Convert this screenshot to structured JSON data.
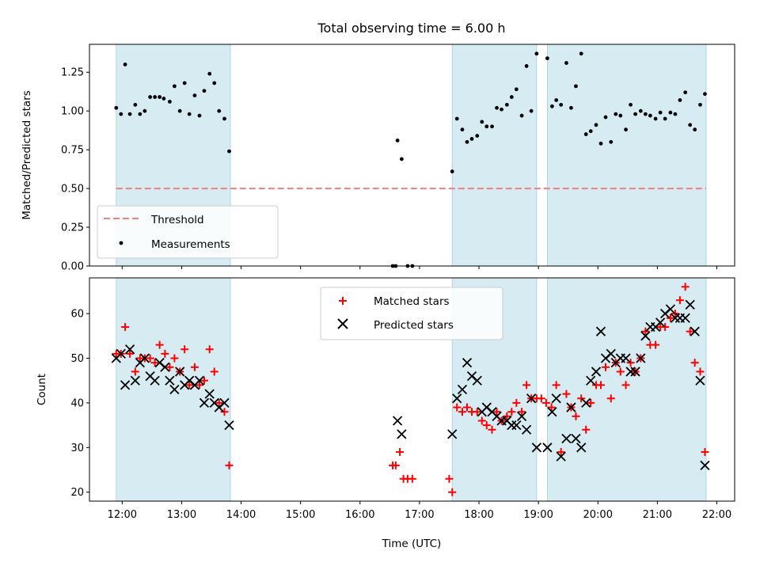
{
  "chart_data": [
    {
      "type": "scatter",
      "title": "Total observing time = 6.00 h",
      "ylabel": "Matched/Predicted stars",
      "xlabel": "",
      "x_unit": "hours UTC",
      "xlim": [
        11.45,
        22.3
      ],
      "ylim": [
        0,
        1.43
      ],
      "yticks": [
        0.0,
        0.25,
        0.5,
        0.75,
        1.0,
        1.25
      ],
      "ytick_labels": [
        "0.00",
        "0.25",
        "0.50",
        "0.75",
        "1.00",
        "1.25"
      ],
      "xticks": [
        12,
        13,
        14,
        15,
        16,
        17,
        18,
        19,
        20,
        21,
        22
      ],
      "xtick_labels": [
        "",
        "",
        "",
        "",
        "",
        "",
        "",
        "",
        "",
        "",
        ""
      ],
      "shaded_intervals": [
        [
          11.9,
          13.82
        ],
        [
          17.55,
          18.97
        ],
        [
          19.15,
          21.82
        ]
      ],
      "threshold": {
        "name": "Threshold",
        "value": 0.5,
        "x_range": [
          11.9,
          21.82
        ],
        "color": "#f08080"
      },
      "legend": {
        "placement": "lower-left",
        "entries": [
          "Threshold",
          "Measurements"
        ]
      },
      "series": [
        {
          "name": "Measurements",
          "color": "#000000",
          "points": [
            [
              11.9,
              1.02
            ],
            [
              11.98,
              0.98
            ],
            [
              12.05,
              1.3
            ],
            [
              12.13,
              0.98
            ],
            [
              12.22,
              1.04
            ],
            [
              12.3,
              0.98
            ],
            [
              12.38,
              1.0
            ],
            [
              12.47,
              1.09
            ],
            [
              12.55,
              1.09
            ],
            [
              12.63,
              1.09
            ],
            [
              12.7,
              1.08
            ],
            [
              12.8,
              1.06
            ],
            [
              12.88,
              1.16
            ],
            [
              12.97,
              1.0
            ],
            [
              13.05,
              1.18
            ],
            [
              13.13,
              0.98
            ],
            [
              13.22,
              1.1
            ],
            [
              13.3,
              0.97
            ],
            [
              13.38,
              1.13
            ],
            [
              13.47,
              1.24
            ],
            [
              13.55,
              1.18
            ],
            [
              13.63,
              1.0
            ],
            [
              13.72,
              0.95
            ],
            [
              13.8,
              0.74
            ],
            [
              16.55,
              0.0
            ],
            [
              16.6,
              0.0
            ],
            [
              16.63,
              0.81
            ],
            [
              16.7,
              0.69
            ],
            [
              16.8,
              0.0
            ],
            [
              16.88,
              0.0
            ],
            [
              17.55,
              0.61
            ],
            [
              17.63,
              0.95
            ],
            [
              17.72,
              0.88
            ],
            [
              17.8,
              0.8
            ],
            [
              17.88,
              0.82
            ],
            [
              17.97,
              0.84
            ],
            [
              18.05,
              0.93
            ],
            [
              18.13,
              0.9
            ],
            [
              18.22,
              0.9
            ],
            [
              18.3,
              1.02
            ],
            [
              18.38,
              1.01
            ],
            [
              18.47,
              1.04
            ],
            [
              18.55,
              1.09
            ],
            [
              18.63,
              1.14
            ],
            [
              18.72,
              0.97
            ],
            [
              18.8,
              1.29
            ],
            [
              18.88,
              1.0
            ],
            [
              18.97,
              1.37
            ],
            [
              19.15,
              1.34
            ],
            [
              19.23,
              1.03
            ],
            [
              19.3,
              1.07
            ],
            [
              19.38,
              1.04
            ],
            [
              19.47,
              1.31
            ],
            [
              19.55,
              1.02
            ],
            [
              19.63,
              1.16
            ],
            [
              19.72,
              1.37
            ],
            [
              19.8,
              0.85
            ],
            [
              19.88,
              0.87
            ],
            [
              19.97,
              0.91
            ],
            [
              20.05,
              0.79
            ],
            [
              20.13,
              0.96
            ],
            [
              20.22,
              0.8
            ],
            [
              20.3,
              0.98
            ],
            [
              20.38,
              0.97
            ],
            [
              20.47,
              0.88
            ],
            [
              20.55,
              1.04
            ],
            [
              20.63,
              0.98
            ],
            [
              20.72,
              1.0
            ],
            [
              20.8,
              0.98
            ],
            [
              20.88,
              0.97
            ],
            [
              20.97,
              0.95
            ],
            [
              21.05,
              0.99
            ],
            [
              21.13,
              0.95
            ],
            [
              21.22,
              0.99
            ],
            [
              21.3,
              0.98
            ],
            [
              21.38,
              1.07
            ],
            [
              21.47,
              1.12
            ],
            [
              21.55,
              0.91
            ],
            [
              21.63,
              0.88
            ],
            [
              21.72,
              1.04
            ],
            [
              21.8,
              1.11
            ]
          ]
        }
      ]
    },
    {
      "type": "scatter",
      "title": "",
      "ylabel": "Count",
      "xlabel": "Time (UTC)",
      "x_unit": "hours UTC",
      "xlim": [
        11.45,
        22.3
      ],
      "ylim": [
        18,
        68
      ],
      "yticks": [
        20,
        30,
        40,
        50,
        60
      ],
      "ytick_labels": [
        "20",
        "30",
        "40",
        "50",
        "60"
      ],
      "xticks": [
        12,
        13,
        14,
        15,
        16,
        17,
        18,
        19,
        20,
        21,
        22
      ],
      "xtick_labels": [
        "12:00",
        "13:00",
        "14:00",
        "15:00",
        "16:00",
        "17:00",
        "18:00",
        "19:00",
        "20:00",
        "21:00",
        "22:00"
      ],
      "shaded_intervals": [
        [
          11.9,
          13.82
        ],
        [
          17.55,
          18.97
        ],
        [
          19.15,
          21.82
        ]
      ],
      "legend": {
        "placement": "upper-center",
        "entries": [
          "Matched stars",
          "Predicted stars"
        ]
      },
      "series": [
        {
          "name": "Matched stars",
          "marker": "plus",
          "color": "#ff0000",
          "points": [
            [
              11.9,
              51
            ],
            [
              11.98,
              51
            ],
            [
              12.05,
              57
            ],
            [
              12.13,
              51
            ],
            [
              12.22,
              47
            ],
            [
              12.3,
              50
            ],
            [
              12.38,
              50
            ],
            [
              12.47,
              50
            ],
            [
              12.55,
              49
            ],
            [
              12.63,
              53
            ],
            [
              12.72,
              51
            ],
            [
              12.8,
              48
            ],
            [
              12.88,
              50
            ],
            [
              12.97,
              47
            ],
            [
              13.05,
              52
            ],
            [
              13.13,
              44
            ],
            [
              13.22,
              48
            ],
            [
              13.3,
              44
            ],
            [
              13.38,
              45
            ],
            [
              13.47,
              52
            ],
            [
              13.55,
              47
            ],
            [
              13.63,
              40
            ],
            [
              13.72,
              38
            ],
            [
              13.8,
              26
            ],
            [
              16.55,
              26
            ],
            [
              16.6,
              26
            ],
            [
              16.67,
              29
            ],
            [
              16.73,
              23
            ],
            [
              16.8,
              23
            ],
            [
              16.88,
              23
            ],
            [
              17.5,
              23
            ],
            [
              17.55,
              20
            ],
            [
              17.63,
              39
            ],
            [
              17.72,
              38
            ],
            [
              17.8,
              39
            ],
            [
              17.88,
              38
            ],
            [
              17.97,
              38
            ],
            [
              18.05,
              36
            ],
            [
              18.13,
              35
            ],
            [
              18.22,
              34
            ],
            [
              18.3,
              38
            ],
            [
              18.38,
              36
            ],
            [
              18.47,
              37
            ],
            [
              18.55,
              38
            ],
            [
              18.63,
              40
            ],
            [
              18.72,
              38
            ],
            [
              18.8,
              44
            ],
            [
              18.88,
              41
            ],
            [
              18.97,
              41
            ],
            [
              19.05,
              41
            ],
            [
              19.13,
              40
            ],
            [
              19.22,
              39
            ],
            [
              19.3,
              44
            ],
            [
              19.38,
              29
            ],
            [
              19.47,
              42
            ],
            [
              19.55,
              39
            ],
            [
              19.63,
              37
            ],
            [
              19.72,
              41
            ],
            [
              19.8,
              34
            ],
            [
              19.88,
              40
            ],
            [
              19.97,
              44
            ],
            [
              20.05,
              44
            ],
            [
              20.13,
              48
            ],
            [
              20.22,
              41
            ],
            [
              20.3,
              49
            ],
            [
              20.38,
              47
            ],
            [
              20.47,
              44
            ],
            [
              20.55,
              49
            ],
            [
              20.63,
              47
            ],
            [
              20.72,
              50
            ],
            [
              20.8,
              56
            ],
            [
              20.88,
              53
            ],
            [
              20.97,
              53
            ],
            [
              21.05,
              57
            ],
            [
              21.13,
              57
            ],
            [
              21.22,
              59
            ],
            [
              21.3,
              60
            ],
            [
              21.38,
              63
            ],
            [
              21.47,
              66
            ],
            [
              21.55,
              56
            ],
            [
              21.63,
              49
            ],
            [
              21.72,
              47
            ],
            [
              21.8,
              29
            ]
          ]
        },
        {
          "name": "Predicted stars",
          "marker": "x",
          "color": "#000000",
          "points": [
            [
              11.9,
              50
            ],
            [
              11.98,
              51
            ],
            [
              12.05,
              44
            ],
            [
              12.13,
              52
            ],
            [
              12.22,
              45
            ],
            [
              12.3,
              49
            ],
            [
              12.38,
              50
            ],
            [
              12.47,
              46
            ],
            [
              12.55,
              45
            ],
            [
              12.63,
              49
            ],
            [
              12.72,
              48
            ],
            [
              12.8,
              45
            ],
            [
              12.88,
              43
            ],
            [
              12.97,
              47
            ],
            [
              13.05,
              44
            ],
            [
              13.13,
              45
            ],
            [
              13.22,
              44
            ],
            [
              13.3,
              45
            ],
            [
              13.38,
              40
            ],
            [
              13.47,
              42
            ],
            [
              13.55,
              40
            ],
            [
              13.63,
              39
            ],
            [
              13.72,
              40
            ],
            [
              13.8,
              35
            ],
            [
              16.63,
              36
            ],
            [
              16.7,
              33
            ],
            [
              17.55,
              33
            ],
            [
              17.63,
              41
            ],
            [
              17.72,
              43
            ],
            [
              17.8,
              49
            ],
            [
              17.88,
              46
            ],
            [
              17.97,
              45
            ],
            [
              18.05,
              38
            ],
            [
              18.13,
              39
            ],
            [
              18.22,
              38
            ],
            [
              18.3,
              37
            ],
            [
              18.38,
              36
            ],
            [
              18.47,
              36
            ],
            [
              18.55,
              35
            ],
            [
              18.63,
              35
            ],
            [
              18.72,
              37
            ],
            [
              18.8,
              34
            ],
            [
              18.88,
              41
            ],
            [
              18.97,
              30
            ],
            [
              19.15,
              30
            ],
            [
              19.23,
              38
            ],
            [
              19.3,
              41
            ],
            [
              19.38,
              28
            ],
            [
              19.47,
              32
            ],
            [
              19.55,
              39
            ],
            [
              19.63,
              32
            ],
            [
              19.72,
              30
            ],
            [
              19.8,
              40
            ],
            [
              19.88,
              45
            ],
            [
              19.97,
              47
            ],
            [
              20.05,
              56
            ],
            [
              20.13,
              50
            ],
            [
              20.22,
              51
            ],
            [
              20.3,
              49
            ],
            [
              20.38,
              50
            ],
            [
              20.47,
              50
            ],
            [
              20.55,
              47
            ],
            [
              20.63,
              47
            ],
            [
              20.72,
              50
            ],
            [
              20.8,
              55
            ],
            [
              20.88,
              57
            ],
            [
              20.97,
              57
            ],
            [
              21.05,
              58
            ],
            [
              21.13,
              60
            ],
            [
              21.22,
              61
            ],
            [
              21.3,
              59
            ],
            [
              21.38,
              59
            ],
            [
              21.47,
              59
            ],
            [
              21.55,
              62
            ],
            [
              21.63,
              56
            ],
            [
              21.72,
              45
            ],
            [
              21.8,
              26
            ]
          ]
        }
      ]
    }
  ]
}
